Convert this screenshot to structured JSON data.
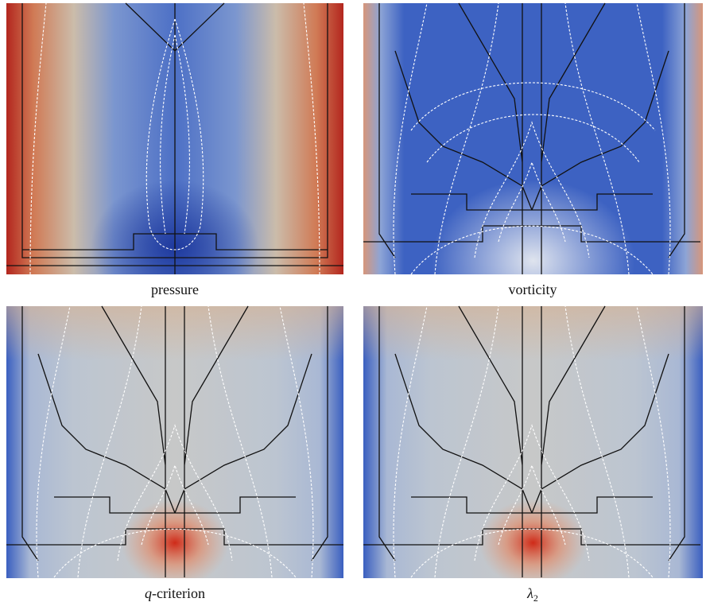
{
  "panels": [
    {
      "caption": "pressure"
    },
    {
      "caption": "vorticity"
    },
    {
      "caption_italic": "q",
      "caption": "-criterion"
    },
    {
      "caption_italic": "λ",
      "caption_sub": "2"
    }
  ]
}
